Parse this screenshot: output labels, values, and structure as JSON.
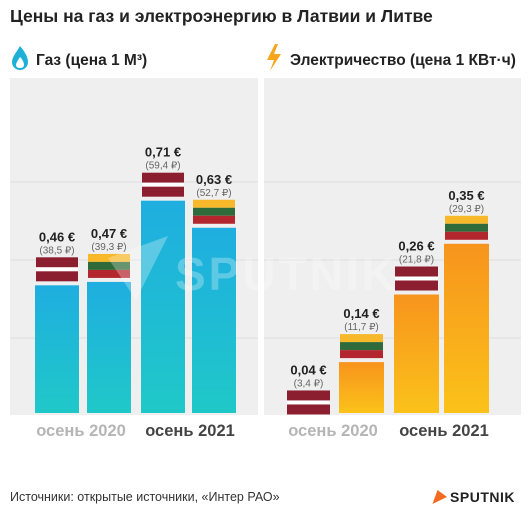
{
  "title": "Цены на газ и электроэнергию в Латвии и Литве",
  "sources": "Источники: открытые источники, «Интер РАО»",
  "logo": "SPUTNIK",
  "watermark": "SPUTNIK",
  "colors": {
    "panel_bg": "#efefef",
    "gas_top": "#1faee0",
    "gas_bottom": "#1fc8c8",
    "elec_top": "#f7941d",
    "elec_bottom": "#fbc21a",
    "latvia_red": "#8c1f2f",
    "lithuania_yellow": "#f7b829",
    "lithuania_green": "#2f6b3a",
    "lithuania_red": "#b3262e",
    "gas_icon": "#1fb0d8",
    "elec_icon": "#f7a51d",
    "logo_accent": "#f26b21"
  },
  "chart_data": [
    {
      "type": "bar",
      "panel": "gas",
      "icon": "flame-icon",
      "title": "Газ (цена 1 М³)",
      "ylim": [
        0,
        0.78
      ],
      "groups": [
        "осень 2020",
        "осень 2021"
      ],
      "bars": [
        {
          "group": "осень 2020",
          "country": "Латвия",
          "flag": "latvia",
          "value": 0.46,
          "label": "0,46 €",
          "sublabel": "(38,5 ₽)"
        },
        {
          "group": "осень 2020",
          "country": "Литва",
          "flag": "lithuania",
          "value": 0.47,
          "label": "0,47 €",
          "sublabel": "(39,3 ₽)"
        },
        {
          "group": "осень 2021",
          "country": "Латвия",
          "flag": "latvia",
          "value": 0.71,
          "label": "0,71 €",
          "sublabel": "(59,4 ₽)"
        },
        {
          "group": "осень 2021",
          "country": "Литва",
          "flag": "lithuania",
          "value": 0.63,
          "label": "0,63 €",
          "sublabel": "(52,7 ₽)"
        }
      ]
    },
    {
      "type": "bar",
      "panel": "electricity",
      "icon": "lightning-icon",
      "title": "Электричество (цена 1 КВт·ч)",
      "ylim": [
        0,
        0.52
      ],
      "groups": [
        "осень 2020",
        "осень 2021"
      ],
      "bars": [
        {
          "group": "осень 2020",
          "country": "Латвия",
          "flag": "latvia",
          "value": 0.04,
          "label": "0,04 €",
          "sublabel": "(3,4 ₽)"
        },
        {
          "group": "осень 2020",
          "country": "Литва",
          "flag": "lithuania",
          "value": 0.14,
          "label": "0,14 €",
          "sublabel": "(11,7 ₽)"
        },
        {
          "group": "осень 2021",
          "country": "Латвия",
          "flag": "latvia",
          "value": 0.26,
          "label": "0,26 €",
          "sublabel": "(21,8 ₽)"
        },
        {
          "group": "осень 2021",
          "country": "Литва",
          "flag": "lithuania",
          "value": 0.35,
          "label": "0,35 €",
          "sublabel": "(29,3 ₽)"
        }
      ]
    }
  ]
}
